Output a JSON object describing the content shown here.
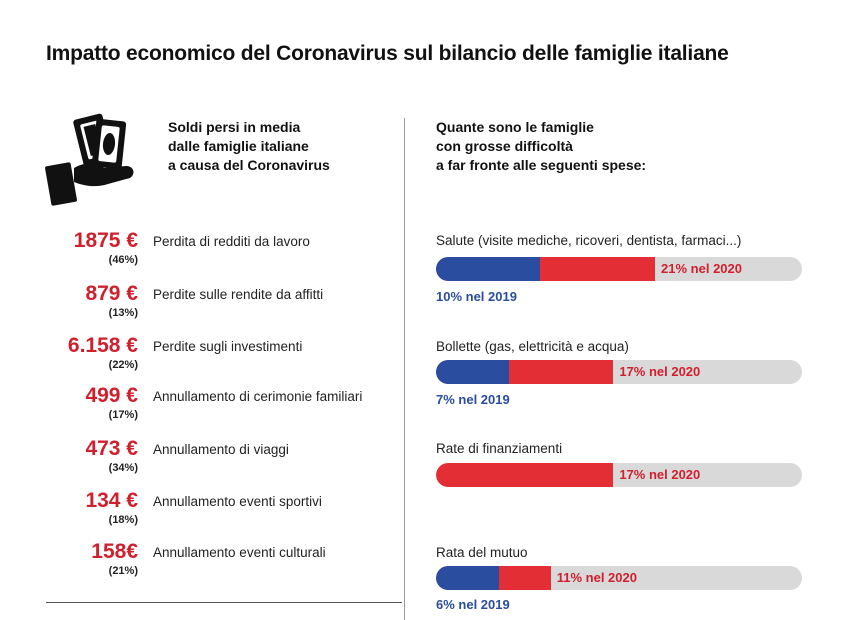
{
  "title": "Impatto economico del Coronavirus sul bilancio delle famiglie italiane",
  "colors": {
    "red": "#d0202e",
    "bar_red": "#e42e36",
    "blue": "#2a4da0",
    "track": "#d9d9d9"
  },
  "icon": "hand-holding-money-icon",
  "left_heading": [
    "Soldi persi in media",
    "dalle famiglie italiane",
    "a causa del Coronavirus"
  ],
  "right_heading": [
    "Quante sono le famiglie",
    "con grosse difficoltà",
    "a far fronte alle seguenti spese:"
  ],
  "chart_data": [
    {
      "type": "table",
      "rows": [
        {
          "value": "1875 €",
          "share": "(46%)",
          "label": "Perdita di redditi da lavoro"
        },
        {
          "value": "879 €",
          "share": "(13%)",
          "label": "Perdite sulle rendite da affitti"
        },
        {
          "value": "6.158 €",
          "share": "(22%)",
          "label": "Perdite sugli investimenti"
        },
        {
          "value": "499 €",
          "share": "(17%)",
          "label": "Annullamento di cerimonie familiari"
        },
        {
          "value": "473 €",
          "share": "(34%)",
          "label": "Annullamento di viaggi"
        },
        {
          "value": "134 €",
          "share": "(18%)",
          "label": "Annullamento eventi sportivi"
        },
        {
          "value": "158€",
          "share": "(21%)",
          "label": "Annullamento eventi  culturali"
        }
      ]
    },
    {
      "type": "bar",
      "categories": [
        "Salute (visite mediche, ricoveri, dentista, farmaci...)",
        "Bollette (gas, elettricità e acqua)",
        "Rate di finanziamenti",
        "Rata del mutuo"
      ],
      "series": [
        {
          "name": "2020",
          "values": [
            21,
            17,
            17,
            11
          ],
          "labels": [
            "21% nel 2020",
            "17% nel 2020",
            "17% nel 2020",
            "11% nel 2020"
          ]
        },
        {
          "name": "2019",
          "values": [
            10,
            7,
            null,
            6
          ],
          "labels": [
            "10% nel 2019",
            "7% nel 2019",
            "",
            "6% nel 2019"
          ]
        }
      ]
    }
  ]
}
